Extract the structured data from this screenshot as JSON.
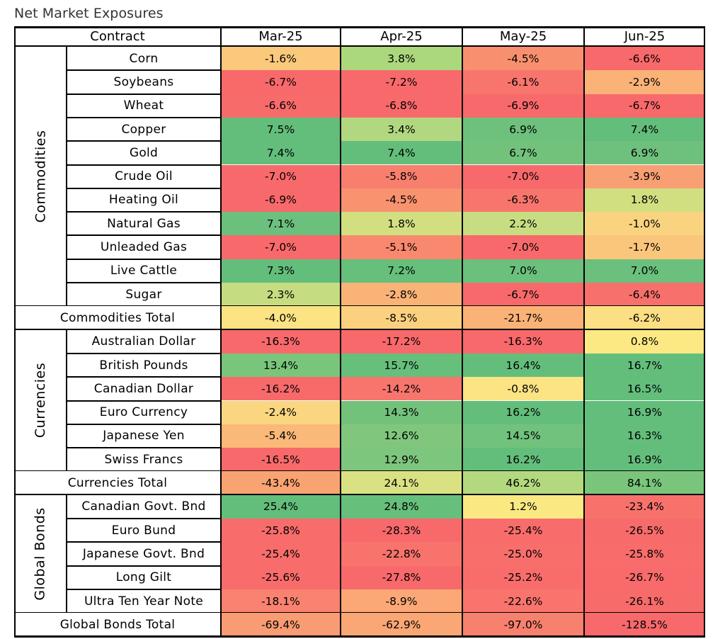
{
  "title": "Net Market Exposures",
  "header": {
    "contract": "Contract",
    "months": [
      "Mar-25",
      "Apr-25",
      "May-25",
      "Jun-25"
    ]
  },
  "groups": [
    {
      "name": "Commodities",
      "total_label": "Commodities Total",
      "rows": [
        {
          "label": "Corn",
          "values": [
            "-1.6%",
            "3.8%",
            "-4.5%",
            "-6.6%"
          ],
          "colors": [
            "#FAC97C",
            "#ABD77D",
            "#F8906F",
            "#F8696B"
          ]
        },
        {
          "label": "Soybeans",
          "values": [
            "-6.7%",
            "-7.2%",
            "-6.1%",
            "-2.9%"
          ],
          "colors": [
            "#F8696B",
            "#F8696B",
            "#F8756D",
            "#FAB277"
          ]
        },
        {
          "label": "Wheat",
          "values": [
            "-6.6%",
            "-6.8%",
            "-6.9%",
            "-6.7%"
          ],
          "colors": [
            "#F86B6B",
            "#F8696B",
            "#F8696B",
            "#F8696B"
          ]
        },
        {
          "label": "Copper",
          "values": [
            "7.5%",
            "3.4%",
            "6.9%",
            "7.4%"
          ],
          "colors": [
            "#63BE7B",
            "#B1D880",
            "#6EC17C",
            "#63BE7B"
          ]
        },
        {
          "label": "Gold",
          "values": [
            "7.4%",
            "7.4%",
            "6.7%",
            "6.9%"
          ],
          "colors": [
            "#63BE7B",
            "#63BE7B",
            "#72C27C",
            "#6EC17C"
          ]
        },
        {
          "label": "Crude Oil",
          "values": [
            "-7.0%",
            "-5.8%",
            "-7.0%",
            "-3.9%"
          ],
          "colors": [
            "#F8696B",
            "#F87E6E",
            "#F8696B",
            "#F99F74"
          ]
        },
        {
          "label": "Heating Oil",
          "values": [
            "-6.9%",
            "-4.5%",
            "-6.3%",
            "1.8%"
          ],
          "colors": [
            "#F8696B",
            "#F8926F",
            "#F8756D",
            "#D1DF81"
          ]
        },
        {
          "label": "Natural Gas",
          "values": [
            "7.1%",
            "1.8%",
            "2.2%",
            "-1.0%"
          ],
          "colors": [
            "#6AC07C",
            "#D1DF81",
            "#C8DD81",
            "#FAD380"
          ]
        },
        {
          "label": "Unleaded Gas",
          "values": [
            "-7.0%",
            "-5.1%",
            "-7.0%",
            "-1.7%"
          ],
          "colors": [
            "#F8696B",
            "#F8886E",
            "#F8696B",
            "#FAC67B"
          ]
        },
        {
          "label": "Live Cattle",
          "values": [
            "7.3%",
            "7.2%",
            "7.0%",
            "7.0%"
          ],
          "colors": [
            "#63BE7B",
            "#66BF7B",
            "#6AC07C",
            "#6AC07C"
          ]
        },
        {
          "label": "Sugar",
          "values": [
            "2.3%",
            "-2.8%",
            "-6.7%",
            "-6.4%"
          ],
          "colors": [
            "#C6DC80",
            "#FAB377",
            "#F8696B",
            "#F8706C"
          ]
        }
      ],
      "total": {
        "values": [
          "-4.0%",
          "-8.5%",
          "-21.7%",
          "-6.2%"
        ],
        "colors": [
          "#FCE383",
          "#FBD17F",
          "#FAB276",
          "#FCDF82"
        ]
      }
    },
    {
      "name": "Currencies",
      "total_label": "Currencies Total",
      "rows": [
        {
          "label": "Australian Dollar",
          "values": [
            "-16.3%",
            "-17.2%",
            "-16.3%",
            "0.8%"
          ],
          "colors": [
            "#F8696B",
            "#F8696B",
            "#F8696B",
            "#FCE983"
          ]
        },
        {
          "label": "British Pounds",
          "values": [
            "13.4%",
            "15.7%",
            "16.4%",
            "16.7%"
          ],
          "colors": [
            "#7AC57C",
            "#66BF7B",
            "#63BE7B",
            "#63BE7B"
          ]
        },
        {
          "label": "Canadian Dollar",
          "values": [
            "-16.2%",
            "-14.2%",
            "-0.8%",
            "16.5%"
          ],
          "colors": [
            "#F8696B",
            "#F8756D",
            "#FCE383",
            "#63BE7B"
          ]
        },
        {
          "label": "Euro Currency",
          "values": [
            "-2.4%",
            "14.3%",
            "16.2%",
            "16.9%"
          ],
          "colors": [
            "#FBD680",
            "#72C27C",
            "#63BE7B",
            "#63BE7B"
          ]
        },
        {
          "label": "Japanese Yen",
          "values": [
            "-5.4%",
            "12.6%",
            "14.5%",
            "16.3%"
          ],
          "colors": [
            "#FAB978",
            "#80C77D",
            "#70C27C",
            "#63BE7B"
          ]
        },
        {
          "label": "Swiss Francs",
          "values": [
            "-16.5%",
            "12.9%",
            "16.2%",
            "16.9%"
          ],
          "colors": [
            "#F8696B",
            "#7DC67D",
            "#63BE7B",
            "#63BE7B"
          ]
        }
      ],
      "total": {
        "values": [
          "-43.4%",
          "24.1%",
          "46.2%",
          "84.1%"
        ],
        "colors": [
          "#F9A373",
          "#DAE182",
          "#B3D97F",
          "#7AC57C"
        ]
      }
    },
    {
      "name": "Global Bonds",
      "total_label": "Global Bonds Total",
      "rows": [
        {
          "label": "Canadian Govt. Bnd",
          "values": [
            "25.4%",
            "24.8%",
            "1.2%",
            "-23.4%"
          ],
          "colors": [
            "#63BE7B",
            "#66BF7B",
            "#FAE883",
            "#F8726C"
          ]
        },
        {
          "label": "Euro Bund",
          "values": [
            "-25.8%",
            "-28.3%",
            "-25.4%",
            "-26.5%"
          ],
          "colors": [
            "#F86C6B",
            "#F8696B",
            "#F86D6B",
            "#F86B6B"
          ]
        },
        {
          "label": "Japanese Govt. Bnd",
          "values": [
            "-25.4%",
            "-22.8%",
            "-25.0%",
            "-25.8%"
          ],
          "colors": [
            "#F86D6B",
            "#F8736C",
            "#F86E6B",
            "#F86C6B"
          ]
        },
        {
          "label": "Long Gilt",
          "values": [
            "-25.6%",
            "-27.8%",
            "-25.2%",
            "-26.7%"
          ],
          "colors": [
            "#F86C6B",
            "#F8696B",
            "#F86D6B",
            "#F86A6B"
          ]
        },
        {
          "label": "Ultra Ten Year Note",
          "values": [
            "-18.1%",
            "-8.9%",
            "-22.6%",
            "-26.1%"
          ],
          "colors": [
            "#F98270",
            "#FBA876",
            "#F8746C",
            "#F86B6B"
          ]
        }
      ],
      "total": {
        "values": [
          "-69.4%",
          "-62.9%",
          "-97.0%",
          "-128.5%"
        ],
        "colors": [
          "#F99B73",
          "#FAA775",
          "#F8806E",
          "#F8696B"
        ]
      }
    }
  ]
}
